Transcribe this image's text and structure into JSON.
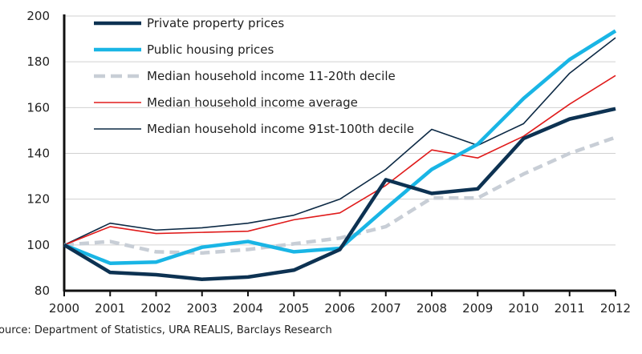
{
  "chart_data": {
    "type": "line",
    "title": "",
    "xlabel": "",
    "ylabel": "",
    "x": [
      2000,
      2001,
      2002,
      2003,
      2004,
      2005,
      2006,
      2007,
      2008,
      2009,
      2010,
      2011,
      2012
    ],
    "x_tick_labels": [
      "2000",
      "2001",
      "2002",
      "2003",
      "2004",
      "2005",
      "2006",
      "2007",
      "2008",
      "2009",
      "2010",
      "2011",
      "2012"
    ],
    "ylim": [
      80,
      200
    ],
    "y_ticks": [
      80,
      100,
      120,
      140,
      160,
      180,
      200
    ],
    "y_tick_labels": [
      "80",
      "100",
      "120",
      "140",
      "160",
      "180",
      "200"
    ],
    "grid": true,
    "legend_position": "top-left",
    "series": [
      {
        "name": "Private property prices",
        "color": "#0d3252",
        "style": "solid-thick",
        "values": [
          100,
          88,
          87,
          85,
          86,
          89,
          98,
          128.5,
          122.5,
          124.5,
          146.5,
          155,
          159.5
        ]
      },
      {
        "name": "Public housing prices",
        "color": "#19b5e5",
        "style": "solid-thick",
        "values": [
          100,
          92,
          92.5,
          99,
          101.5,
          97,
          98.5,
          116,
          133,
          144,
          164,
          181,
          193.5
        ]
      },
      {
        "name": "Median household income 11-20th decile",
        "color": "#c8ced6",
        "style": "dashed",
        "values": [
          100,
          101.5,
          97,
          96.5,
          98,
          100.5,
          103,
          108,
          120.5,
          120.5,
          131,
          140,
          147
        ]
      },
      {
        "name": "Median household income average",
        "color": "#e01b1b",
        "style": "solid-thin",
        "values": [
          100,
          108,
          105,
          105.5,
          106,
          111,
          114,
          126,
          141.5,
          138,
          147.5,
          161.5,
          174
        ]
      },
      {
        "name": "Median household income 91st-100th decile",
        "color": "#0d2a45",
        "style": "solid-thin",
        "values": [
          100,
          109.5,
          106.5,
          107.5,
          109.5,
          113,
          120,
          133,
          150.5,
          143.5,
          153,
          175,
          190.5
        ]
      }
    ]
  },
  "source": "ource: Department of Statistics, URA REALIS, Barclays Research"
}
